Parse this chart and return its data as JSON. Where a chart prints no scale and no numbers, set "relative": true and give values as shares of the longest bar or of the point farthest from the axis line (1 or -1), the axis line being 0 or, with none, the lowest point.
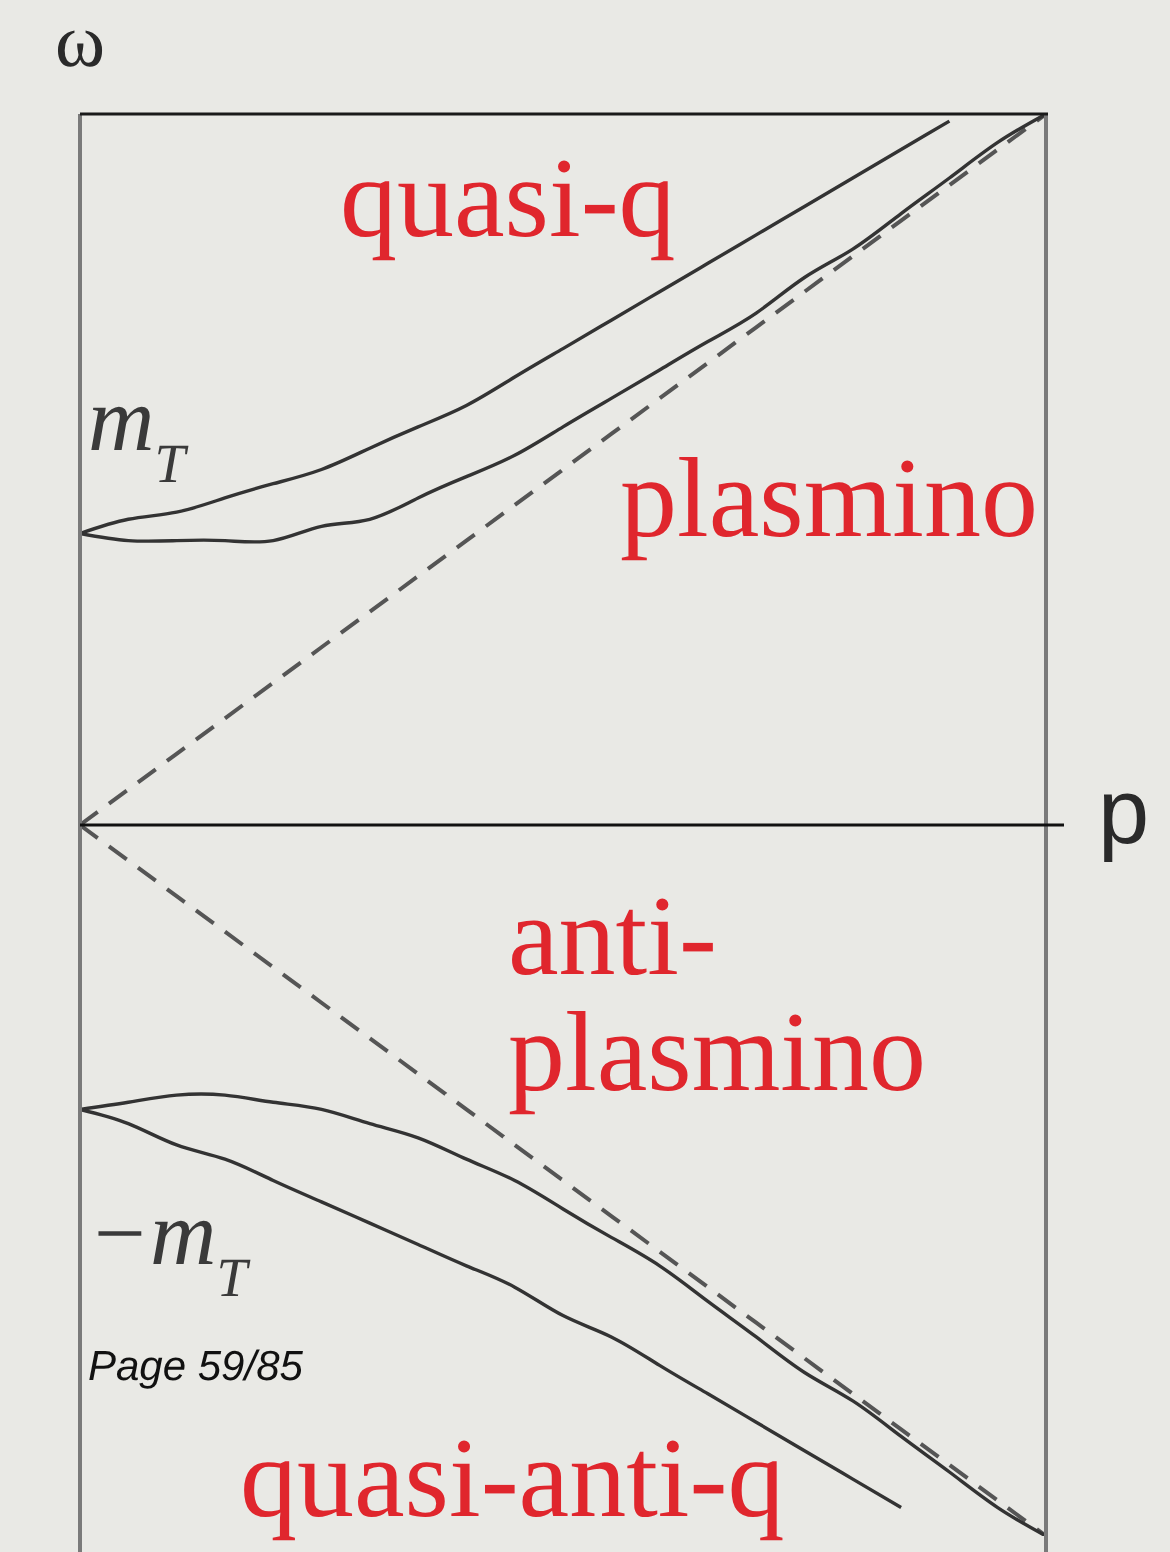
{
  "chart_data": {
    "type": "line",
    "xlabel": "p",
    "ylabel": "ω",
    "relative": true,
    "line_style": "solid",
    "marker": "none",
    "categories": [
      null,
      null,
      null,
      null,
      null,
      null,
      null,
      null,
      null,
      null,
      null,
      null,
      null,
      null,
      null,
      null,
      null,
      null,
      null,
      null,
      null
    ],
    "series": [
      {
        "color": "#555555",
        "line_style": "dashed",
        "values": [
          0,
          0.05,
          0.1,
          0.15,
          0.2,
          0.25,
          0.3,
          0.35,
          0.4,
          0.45,
          0.5,
          0.55,
          0.6,
          0.65,
          0.7,
          0.75,
          0.8,
          0.85,
          0.9,
          0.95,
          1
        ]
      },
      {
        "color": "#555555",
        "line_style": "dashed",
        "values": [
          0,
          -0.05,
          -0.1,
          -0.15,
          -0.2,
          -0.25,
          -0.3,
          -0.35,
          -0.4,
          -0.45,
          -0.5,
          -0.55,
          -0.6,
          -0.65,
          -0.7,
          -0.75,
          -0.8,
          -0.85,
          -0.9,
          -0.95,
          -1
        ]
      },
      {
        "name": "quasi-q",
        "color": "#333333",
        "values": [
          0.41,
          0.43,
          0.44,
          0.46,
          0.48,
          0.5,
          0.53,
          0.56,
          0.59,
          0.63,
          0.67,
          0.71,
          0.75,
          0.79,
          0.83,
          0.87,
          0.91,
          0.95,
          0.99,
          null,
          null
        ]
      },
      {
        "name": "plasmino",
        "color": "#333333",
        "values": [
          0.41,
          0.4,
          0.4,
          0.4,
          0.4,
          0.42,
          0.43,
          0.46,
          0.49,
          0.52,
          0.56,
          0.6,
          0.64,
          0.68,
          0.72,
          0.77,
          0.81,
          0.86,
          0.91,
          0.96,
          1
        ]
      },
      {
        "name": "anti-plasmino",
        "color": "#333333",
        "values": [
          -0.4,
          -0.39,
          -0.38,
          -0.38,
          -0.39,
          -0.4,
          -0.42,
          -0.44,
          -0.47,
          -0.5,
          -0.54,
          -0.58,
          -0.62,
          -0.67,
          -0.72,
          -0.77,
          -0.81,
          -0.86,
          -0.91,
          -0.96,
          -1
        ]
      },
      {
        "name": "quasi-anti-q",
        "color": "#333333",
        "values": [
          -0.4,
          -0.42,
          -0.45,
          -0.47,
          -0.5,
          -0.53,
          -0.56,
          -0.59,
          -0.62,
          -0.65,
          -0.69,
          -0.72,
          -0.76,
          -0.8,
          -0.84,
          -0.88,
          -0.92,
          -0.96,
          null,
          null,
          null
        ]
      }
    ],
    "annotations": [
      "m$_{T}$",
      "−m$_{T}$",
      "Page 59/85"
    ]
  }
}
